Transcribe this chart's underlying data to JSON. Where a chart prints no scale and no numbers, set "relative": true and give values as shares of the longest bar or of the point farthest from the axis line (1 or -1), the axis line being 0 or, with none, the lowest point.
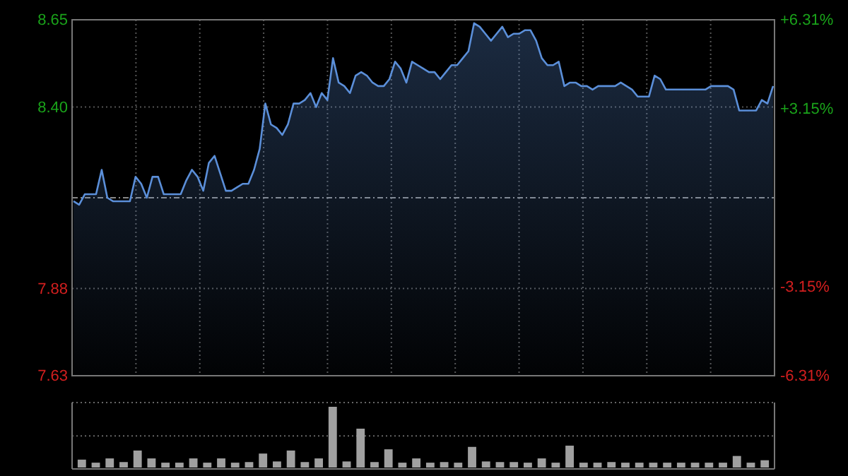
{
  "chart_data": [
    {
      "type": "area",
      "categories": [
        null,
        null,
        null,
        null,
        null,
        null,
        null,
        null,
        null,
        null,
        null,
        null,
        null,
        null,
        null,
        null,
        null,
        null,
        null,
        null,
        null,
        null,
        null,
        null,
        null,
        null,
        null,
        null,
        null,
        null,
        null,
        null,
        null,
        null,
        null,
        null,
        null,
        null,
        null,
        null,
        null,
        null,
        null,
        null,
        null,
        null,
        null,
        null,
        null,
        null,
        null,
        null,
        null,
        null,
        null,
        null,
        null,
        null,
        null,
        null,
        null,
        null,
        null,
        null,
        null,
        null,
        null,
        null,
        null,
        null,
        null,
        null,
        null,
        null,
        null,
        null,
        null,
        null,
        null,
        null,
        null,
        null,
        null,
        null,
        null,
        null,
        null,
        null,
        null,
        null,
        null,
        null,
        null,
        null,
        null,
        null,
        null,
        null,
        null,
        null,
        null,
        null,
        null,
        null,
        null,
        null,
        null,
        null,
        null,
        null,
        null,
        null,
        null,
        null,
        null,
        null,
        null,
        null,
        null,
        null,
        null,
        null,
        null,
        null,
        null
      ],
      "series": [
        {
          "color": "#5b8fd9",
          "values": [
            8.13,
            8.12,
            8.15,
            8.15,
            8.15,
            8.22,
            8.14,
            8.13,
            8.13,
            8.13,
            8.13,
            8.2,
            8.18,
            8.14,
            8.2,
            8.2,
            8.15,
            8.15,
            8.15,
            8.15,
            8.19,
            8.22,
            8.2,
            8.16,
            8.24,
            8.26,
            8.21,
            8.16,
            8.16,
            8.17,
            8.18,
            8.18,
            8.22,
            8.28,
            8.41,
            8.35,
            8.34,
            8.32,
            8.35,
            8.41,
            8.41,
            8.42,
            8.44,
            8.4,
            8.44,
            8.42,
            8.54,
            8.47,
            8.46,
            8.44,
            8.49,
            8.5,
            8.49,
            8.47,
            8.46,
            8.46,
            8.48,
            8.53,
            8.51,
            8.47,
            8.53,
            8.52,
            8.51,
            8.5,
            8.5,
            8.48,
            8.5,
            8.52,
            8.52,
            8.54,
            8.56,
            8.64,
            8.63,
            8.61,
            8.59,
            8.61,
            8.63,
            8.6,
            8.61,
            8.61,
            8.62,
            8.62,
            8.59,
            8.54,
            8.52,
            8.52,
            8.53,
            8.46,
            8.47,
            8.47,
            8.46,
            8.46,
            8.45,
            8.46,
            8.46,
            8.46,
            8.46,
            8.47,
            8.46,
            8.45,
            8.43,
            8.43,
            8.43,
            8.49,
            8.48,
            8.45,
            8.45,
            8.45,
            8.45,
            8.45,
            8.45,
            8.45,
            8.45,
            8.46,
            8.46,
            8.46,
            8.46,
            8.45,
            8.39,
            8.39,
            8.39,
            8.39,
            8.42,
            8.41,
            8.46
          ]
        }
      ],
      "ylim": [
        7.63,
        8.65
      ],
      "yticks": [
        8.65,
        {
          "value": 8.4,
          "label": "8.40"
        },
        7.88,
        7.63
      ],
      "y2lim": [
        -6.31,
        6.31
      ],
      "y2ticks": [
        {
          "value": 6.31,
          "label": "+6.31%"
        },
        {
          "value": 3.15,
          "label": "+3.15%"
        },
        {
          "value": -3.15,
          "label": "-3.15%"
        },
        {
          "value": -6.31,
          "label": "-6.31%"
        }
      ],
      "ref_lines": [
        {
          "axis": "y",
          "value": 8.14,
          "line_style": "dashed"
        }
      ],
      "grid": true
    },
    {
      "type": "bar",
      "relative": true,
      "grid": true,
      "ref_lines": [
        {
          "axis": "y",
          "value": 0.52,
          "line_style": "dotted",
          "color": "#666666"
        }
      ],
      "categories": [
        null,
        null,
        null,
        null,
        null,
        null,
        null,
        null,
        null,
        null,
        null,
        null,
        null,
        null,
        null,
        null,
        null,
        null,
        null,
        null,
        null,
        null,
        null,
        null,
        null,
        null,
        null,
        null,
        null,
        null,
        null,
        null,
        null,
        null,
        null,
        null,
        null,
        null,
        null,
        null,
        null,
        null,
        null,
        null,
        null,
        null,
        null,
        null,
        null,
        null
      ],
      "series": [
        {
          "color": "#a0a0a0",
          "values": [
            0.13,
            0.08,
            0.15,
            0.09,
            0.28,
            0.15,
            0.08,
            0.08,
            0.15,
            0.08,
            0.15,
            0.08,
            0.09,
            0.23,
            0.1,
            0.28,
            0.09,
            0.15,
            1,
            0.1,
            0.64,
            0.09,
            0.3,
            0.08,
            0.15,
            0.08,
            0.09,
            0.08,
            0.34,
            0.1,
            0.09,
            0.09,
            0.08,
            0.15,
            0.08,
            0.36,
            0.08,
            0.08,
            0.09,
            0.08,
            0.08,
            0.08,
            0.08,
            0.08,
            0.08,
            0.08,
            0.08,
            0.19,
            0.08,
            0.12
          ]
        }
      ]
    }
  ]
}
